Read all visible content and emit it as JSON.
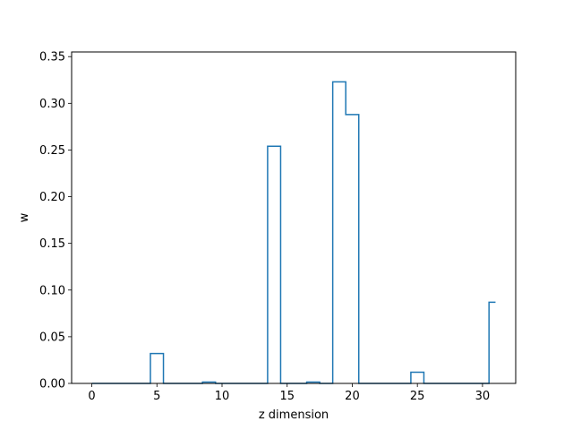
{
  "chart_data": {
    "type": "step",
    "xlabel": "z dimension",
    "ylabel": "w",
    "xlim": [
      -1.55,
      32.55
    ],
    "ylim": [
      0,
      0.355
    ],
    "xticks": [
      0,
      5,
      10,
      15,
      20,
      25,
      30
    ],
    "xtick_labels": [
      "0",
      "5",
      "10",
      "15",
      "20",
      "25",
      "30"
    ],
    "yticks": [
      0.0,
      0.05,
      0.1,
      0.15,
      0.2,
      0.25,
      0.3,
      0.35
    ],
    "ytick_labels": [
      "0.00",
      "0.05",
      "0.10",
      "0.15",
      "0.20",
      "0.25",
      "0.30",
      "0.35"
    ],
    "grid": false,
    "step_where": "mid",
    "line_color": "#1f77b4",
    "series": [
      {
        "x": [
          0,
          1,
          2,
          3,
          4,
          5,
          6,
          7,
          8,
          9,
          10,
          11,
          12,
          13,
          14,
          15,
          16,
          17,
          18,
          19,
          20,
          21,
          22,
          23,
          24,
          25,
          26,
          27,
          28,
          29,
          30,
          31
        ],
        "values": [
          0,
          0,
          0,
          0,
          0,
          0.032,
          0,
          0,
          0,
          0.0015,
          0,
          0,
          0,
          0,
          0.254,
          0,
          0,
          0.0015,
          0,
          0.323,
          0.288,
          0,
          0,
          0,
          0,
          0.012,
          0,
          0,
          0,
          0,
          0,
          0.087
        ]
      }
    ]
  }
}
